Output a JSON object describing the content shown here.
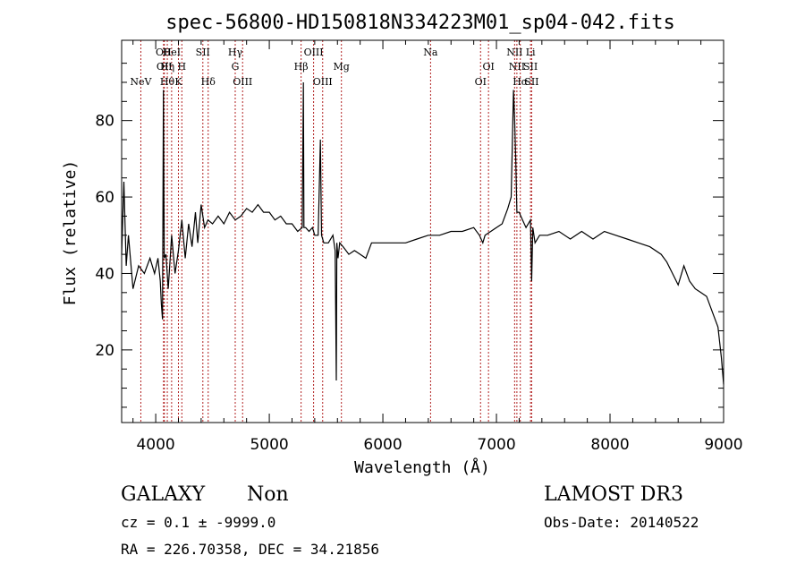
{
  "chart_data": {
    "type": "line",
    "title": "spec-56800-HD150818N334223M01_sp04-042.fits",
    "xlabel": "Wavelength (Å)",
    "ylabel": "Flux (relative)",
    "xlim": [
      3700,
      9000
    ],
    "ylim": [
      1,
      101
    ],
    "x_ticks": [
      4000,
      5000,
      6000,
      7000,
      8000,
      9000
    ],
    "y_ticks": [
      20,
      40,
      60,
      80
    ],
    "grid": false,
    "legend": "none",
    "line_color": "#000000",
    "marker_color": "#b22222",
    "series": [
      {
        "x": [
          3700,
          3720,
          3740,
          3760,
          3800,
          3850,
          3900,
          3950,
          3990,
          4020,
          4040,
          4050,
          4060,
          4068,
          4075,
          4090,
          4110,
          4140,
          4170,
          4200,
          4230,
          4260,
          4290,
          4320,
          4350,
          4370,
          4400,
          4430,
          4460,
          4500,
          4550,
          4600,
          4650,
          4700,
          4750,
          4800,
          4850,
          4900,
          4950,
          5000,
          5050,
          5100,
          5150,
          5200,
          5250,
          5290,
          5300,
          5305,
          5320,
          5350,
          5380,
          5400,
          5430,
          5450,
          5460,
          5480,
          5520,
          5560,
          5580,
          5590,
          5595,
          5605,
          5620,
          5650,
          5700,
          5750,
          5800,
          5850,
          5900,
          6000,
          6100,
          6200,
          6300,
          6400,
          6500,
          6600,
          6700,
          6800,
          6850,
          6880,
          6900,
          6950,
          7000,
          7050,
          7100,
          7130,
          7150,
          7160,
          7170,
          7180,
          7200,
          7230,
          7260,
          7300,
          7310,
          7320,
          7340,
          7380,
          7450,
          7550,
          7650,
          7750,
          7850,
          7950,
          8050,
          8150,
          8250,
          8350,
          8450,
          8500,
          8550,
          8600,
          8650,
          8700,
          8750,
          8800,
          8850,
          8900,
          8950,
          8980,
          9000
        ],
        "y": [
          45,
          64,
          42,
          50,
          36,
          42,
          40,
          44,
          40,
          44,
          38,
          32,
          28,
          88,
          44,
          45,
          36,
          50,
          40,
          46,
          54,
          44,
          53,
          47,
          56,
          48,
          58,
          52,
          54,
          53,
          55,
          53,
          56,
          54,
          55,
          57,
          56,
          58,
          56,
          56,
          54,
          55,
          53,
          53,
          51,
          52,
          90,
          52,
          52,
          51,
          52,
          50,
          50,
          75,
          50,
          48,
          48,
          50,
          46,
          12,
          48,
          44,
          48,
          47,
          45,
          46,
          45,
          44,
          48,
          48,
          48,
          48,
          49,
          50,
          50,
          51,
          51,
          52,
          50,
          48,
          50,
          51,
          52,
          53,
          57,
          60,
          88,
          80,
          70,
          56,
          56,
          54,
          52,
          54,
          38,
          52,
          48,
          50,
          50,
          51,
          49,
          51,
          49,
          51,
          50,
          49,
          48,
          47,
          45,
          43,
          40,
          37,
          42,
          38,
          36,
          35,
          34,
          30,
          26,
          18,
          11
        ]
      }
    ],
    "line_markers": [
      {
        "x": 3869,
        "label": "NeV",
        "row": 3
      },
      {
        "x": 4069,
        "label": "OII",
        "row": 1
      },
      {
        "x": 4076,
        "label": "OII",
        "row": 2
      },
      {
        "x": 4102,
        "label": "Hθ",
        "row": 3
      },
      {
        "x": 4102,
        "label": "Hη",
        "row": 2
      },
      {
        "x": 4140,
        "label": "HeI",
        "row": 1
      },
      {
        "x": 4200,
        "label": "K",
        "row": 3
      },
      {
        "x": 4230,
        "label": "H",
        "row": 2
      },
      {
        "x": 4415,
        "label": "SII",
        "row": 1
      },
      {
        "x": 4462,
        "label": "Hδ",
        "row": 3
      },
      {
        "x": 4700,
        "label": "Hγ",
        "row": 1
      },
      {
        "x": 4700,
        "label": "G",
        "row": 2
      },
      {
        "x": 4765,
        "label": "OIII",
        "row": 3
      },
      {
        "x": 5280,
        "label": "Hβ",
        "row": 2
      },
      {
        "x": 5390,
        "label": "OIII",
        "row": 1
      },
      {
        "x": 5470,
        "label": "OIII",
        "row": 3
      },
      {
        "x": 5635,
        "label": "Mg",
        "row": 2
      },
      {
        "x": 6420,
        "label": "Na",
        "row": 1
      },
      {
        "x": 6860,
        "label": "OI",
        "row": 3
      },
      {
        "x": 6930,
        "label": "OI",
        "row": 2
      },
      {
        "x": 7160,
        "label": "NII",
        "row": 1
      },
      {
        "x": 7180,
        "label": "NII",
        "row": 2
      },
      {
        "x": 7210,
        "label": "Hα",
        "row": 3
      },
      {
        "x": 7300,
        "label": "Li",
        "row": 1
      },
      {
        "x": 7300,
        "label": "SII",
        "row": 2
      },
      {
        "x": 7310,
        "label": "SII",
        "row": 3
      }
    ]
  },
  "footer": {
    "object_class": "GALAXY",
    "subclass": "Non",
    "cz_line": "cz = 0.1 ± -9999.0",
    "coords_line": "RA = 226.70358, DEC =  34.21856",
    "survey": "LAMOST DR3",
    "obs_date": "Obs-Date: 20140522"
  }
}
